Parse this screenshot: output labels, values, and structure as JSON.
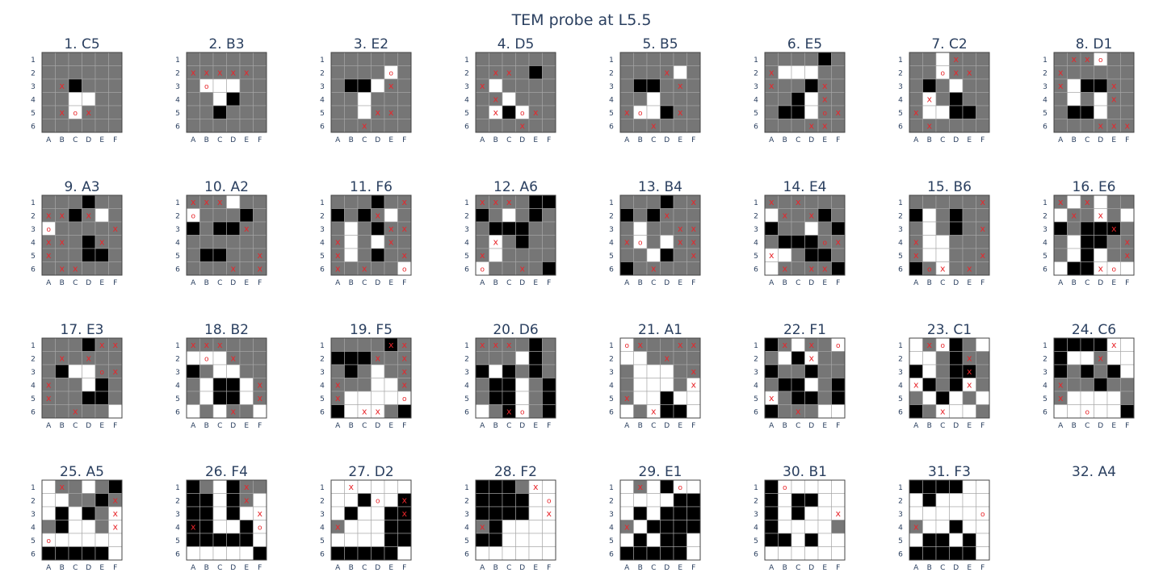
{
  "title": "TEM probe at L5.5",
  "chart_data": {
    "type": "heatmap",
    "title": "TEM probe at L5.5",
    "columns": [
      "A",
      "B",
      "C",
      "D",
      "E",
      "F"
    ],
    "rows": [
      "1",
      "2",
      "3",
      "4",
      "5",
      "6"
    ],
    "legend": {
      "0": "gray (unknown)",
      "1": "white",
      "2": "black",
      "x": "red x marker",
      "o": "red o marker"
    },
    "colors": {
      "0": "#767676",
      "1": "#ffffff",
      "2": "#000000",
      "marker": "#e8262b",
      "grid": "#a6a6a6",
      "title": "#2a3f5f"
    },
    "panels": [
      {
        "title": "1. C5",
        "cells": [
          "000000",
          "000000",
          "002000",
          "001100",
          "001000",
          "000000"
        ],
        "markers": [
          "......",
          "......",
          ".x....",
          "......",
          ".xox..",
          "......"
        ]
      },
      {
        "title": "2. B3",
        "cells": [
          "000000",
          "000000",
          "011100",
          "001200",
          "002000",
          "000000"
        ],
        "markers": [
          "......",
          "xxxxx.",
          ".o....",
          "......",
          "......",
          "......"
        ]
      },
      {
        "title": "3. E2",
        "cells": [
          "000000",
          "000010",
          "022100",
          "001000",
          "001000",
          "000000"
        ],
        "markers": [
          "......",
          "....o.",
          "....x.",
          "......",
          "...xx.",
          "..x..."
        ]
      },
      {
        "title": "4. D5",
        "cells": [
          "000000",
          "000020",
          "010000",
          "001000",
          "012100",
          "000000"
        ],
        "markers": [
          "......",
          ".xx...",
          "x.....",
          ".x....",
          ".x.ox.",
          "...x.."
        ]
      },
      {
        "title": "5. B5",
        "cells": [
          "000000",
          "000010",
          "022000",
          "001000",
          "011200",
          "000000"
        ],
        "markers": [
          "......",
          "...x..",
          "....x.",
          "......",
          "xo..x.",
          "..x..."
        ]
      },
      {
        "title": "6. E5",
        "cells": [
          "000020",
          "011100",
          "000200",
          "002100",
          "022100",
          "000000"
        ],
        "markers": [
          "......",
          "x.....",
          "x...x.",
          "....x.",
          "....ox",
          "...xx."
        ]
      },
      {
        "title": "7. C2",
        "cells": [
          "001000",
          "001000",
          "020100",
          "010200",
          "011220",
          "000000"
        ],
        "markers": [
          "...x..",
          "..oxx.",
          "......",
          ".x....",
          "x.....",
          ".x...."
        ]
      },
      {
        "title": "8. D1",
        "cells": [
          "000100",
          "000000",
          "012200",
          "010100",
          "022100",
          "000000"
        ],
        "markers": [
          ".xxo..",
          "x.....",
          "x...x.",
          "....x.",
          "......",
          "...xxx"
        ]
      },
      {
        "title": "9. A3",
        "cells": [
          "000200",
          "002010",
          "100000",
          "000200",
          "000220",
          "000000"
        ],
        "markers": [
          "......",
          "xx.x..",
          "o....x",
          "xx..x.",
          "x.....",
          ".xx..."
        ]
      },
      {
        "title": "10. A2",
        "cells": [
          "000100",
          "100020",
          "202200",
          "000000",
          "022000",
          "000000"
        ],
        "markers": [
          "xxx...",
          "o.....",
          "....x.",
          "......",
          ".....x",
          "...x.x"
        ]
      },
      {
        "title": "11. F6",
        "cells": [
          "000200",
          "202010",
          "010200",
          "010100",
          "010200",
          "000001"
        ],
        "markers": [
          ".....x",
          "...x..",
          "....xx",
          "x...x.",
          "x....x",
          "x.x..o"
        ]
      },
      {
        "title": "12. A6",
        "cells": [
          "000022",
          "201020",
          "022200",
          "010200",
          "010000",
          "100002"
        ],
        "markers": [
          "xxx...",
          "......",
          "......",
          ".x....",
          "x.....",
          "o..x.."
        ]
      },
      {
        "title": "13. B4",
        "cells": [
          "000200",
          "202000",
          "010000",
          "010100",
          "001200",
          "200000"
        ],
        "markers": [
          ".....x",
          "...x..",
          "....xx",
          "xo..xx",
          ".....x",
          "..x..."
        ]
      },
      {
        "title": "14. E4",
        "cells": [
          "000000",
          "100020",
          "200102",
          "022200",
          "110220",
          "100002"
        ],
        "markers": [
          "x.x...",
          ".x.x..",
          "......",
          "....ox",
          "x.....",
          ".x.xx."
        ]
      },
      {
        "title": "15. B6",
        "cells": [
          "000000",
          "210200",
          "010200",
          "011000",
          "011000",
          "201000"
        ],
        "markers": [
          ".....x",
          "......",
          ".....x",
          "x.....",
          "x....x",
          ".ox.x."
        ]
      },
      {
        "title": "16. E6",
        "cells": [
          "010100",
          "100101",
          "202220",
          "012200",
          "012100",
          "122111"
        ],
        "markers": [
          "x.x...",
          ".x.x..",
          "....x.",
          ".....x",
          ".....x",
          "...xo."
        ]
      },
      {
        "title": "17. E3",
        "cells": [
          "000200",
          "000000",
          "021100",
          "000120",
          "000220",
          "000001"
        ],
        "markers": [
          "....xx",
          ".x.x..",
          "....ox",
          "x.....",
          "x.....",
          "..x..."
        ]
      },
      {
        "title": "18. B2",
        "cells": [
          "000000",
          "111000",
          "201100",
          "012210",
          "012210",
          "101001"
        ],
        "markers": [
          "xxx...",
          ".o.x..",
          "......",
          ".....x",
          ".....x",
          "...x.."
        ]
      },
      {
        "title": "19. F5",
        "cells": [
          "000020",
          "222000",
          "020100",
          "000110",
          "011111",
          "211102"
        ],
        "markers": [
          "....xx",
          "...x.x",
          ".....x",
          "x....x",
          "x....o",
          "..xx.."
        ]
      },
      {
        "title": "20. D6",
        "cells": [
          "000020",
          "000120",
          "212020",
          "022102",
          "022102",
          "102102"
        ],
        "markers": [
          "xxx...",
          "......",
          "......",
          "......",
          "......",
          "..xo.."
        ]
      },
      {
        "title": "21. A1",
        "cells": [
          "100000",
          "110000",
          "011100",
          "011101",
          "011211",
          "101221"
        ],
        "markers": [
          "ox..xx",
          "...x..",
          ".....x",
          ".....x",
          "x.....",
          "..x..."
        ]
      },
      {
        "title": "22. F1",
        "cells": [
          "201001",
          "012100",
          "200200",
          "022102",
          "102202",
          "200011"
        ],
        "markers": [
          ".x.x.o",
          "...x..",
          "......",
          "......",
          "x.....",
          "..x..."
        ]
      },
      {
        "title": "23. C1",
        "cells": [
          "101201",
          "110200",
          "210220",
          "120210",
          "012101",
          "201110"
        ],
        "markers": [
          ".xo...",
          "....x.",
          "....x.",
          "x...x.",
          "......",
          "..x..."
        ]
      },
      {
        "title": "24. C6",
        "cells": [
          "222211",
          "211011",
          "202021",
          "000200",
          "011110",
          "111112"
        ],
        "markers": [
          "....x.",
          "...x..",
          "......",
          "x.....",
          "x.....",
          "..o..."
        ]
      },
      {
        "title": "25. A5",
        "cells": [
          "100102",
          "110020",
          "121201",
          "021101",
          "111111",
          "222221"
        ],
        "markers": [
          ".x....",
          ".....x",
          ".....x",
          ".....x",
          "o.....",
          "......"
        ]
      },
      {
        "title": "26. F4",
        "cells": [
          "201200",
          "221201",
          "221211",
          "221121",
          "222221",
          "111112"
        ],
        "markers": [
          "....x.",
          "....x.",
          ".....x",
          "x....o",
          "......",
          "......"
        ]
      },
      {
        "title": "27. D2",
        "cells": [
          "111111",
          "112112",
          "121122",
          "011122",
          "111122",
          "222221"
        ],
        "markers": [
          ".x....",
          "...o.x",
          ".....x",
          "x.....",
          "......",
          "......"
        ]
      },
      {
        "title": "28. F2",
        "cells": [
          "222011",
          "222211",
          "222211",
          "021111",
          "221111",
          "111111"
        ],
        "markers": [
          "....x.",
          ".....o",
          ".....x",
          "x.....",
          "......",
          "......"
        ]
      },
      {
        "title": "29. E1",
        "cells": [
          "101211",
          "111122",
          "121222",
          "012222",
          "121221",
          "222221"
        ],
        "markers": [
          ".x..o.",
          "......",
          "......",
          "x.....",
          "......",
          "......"
        ]
      },
      {
        "title": "30. B1",
        "cells": [
          "211111",
          "212211",
          "212111",
          "211110",
          "221211",
          "111111"
        ],
        "markers": [
          ".o....",
          "......",
          ".....x",
          "......",
          "......",
          "......"
        ]
      },
      {
        "title": "31. F3",
        "cells": [
          "222211",
          "121111",
          "111111",
          "011211",
          "122121",
          "222221"
        ],
        "markers": [
          "......",
          "......",
          ".....o",
          "x.....",
          "......",
          "......"
        ]
      },
      {
        "title": "32. A4",
        "cells": null,
        "markers": null
      }
    ]
  }
}
